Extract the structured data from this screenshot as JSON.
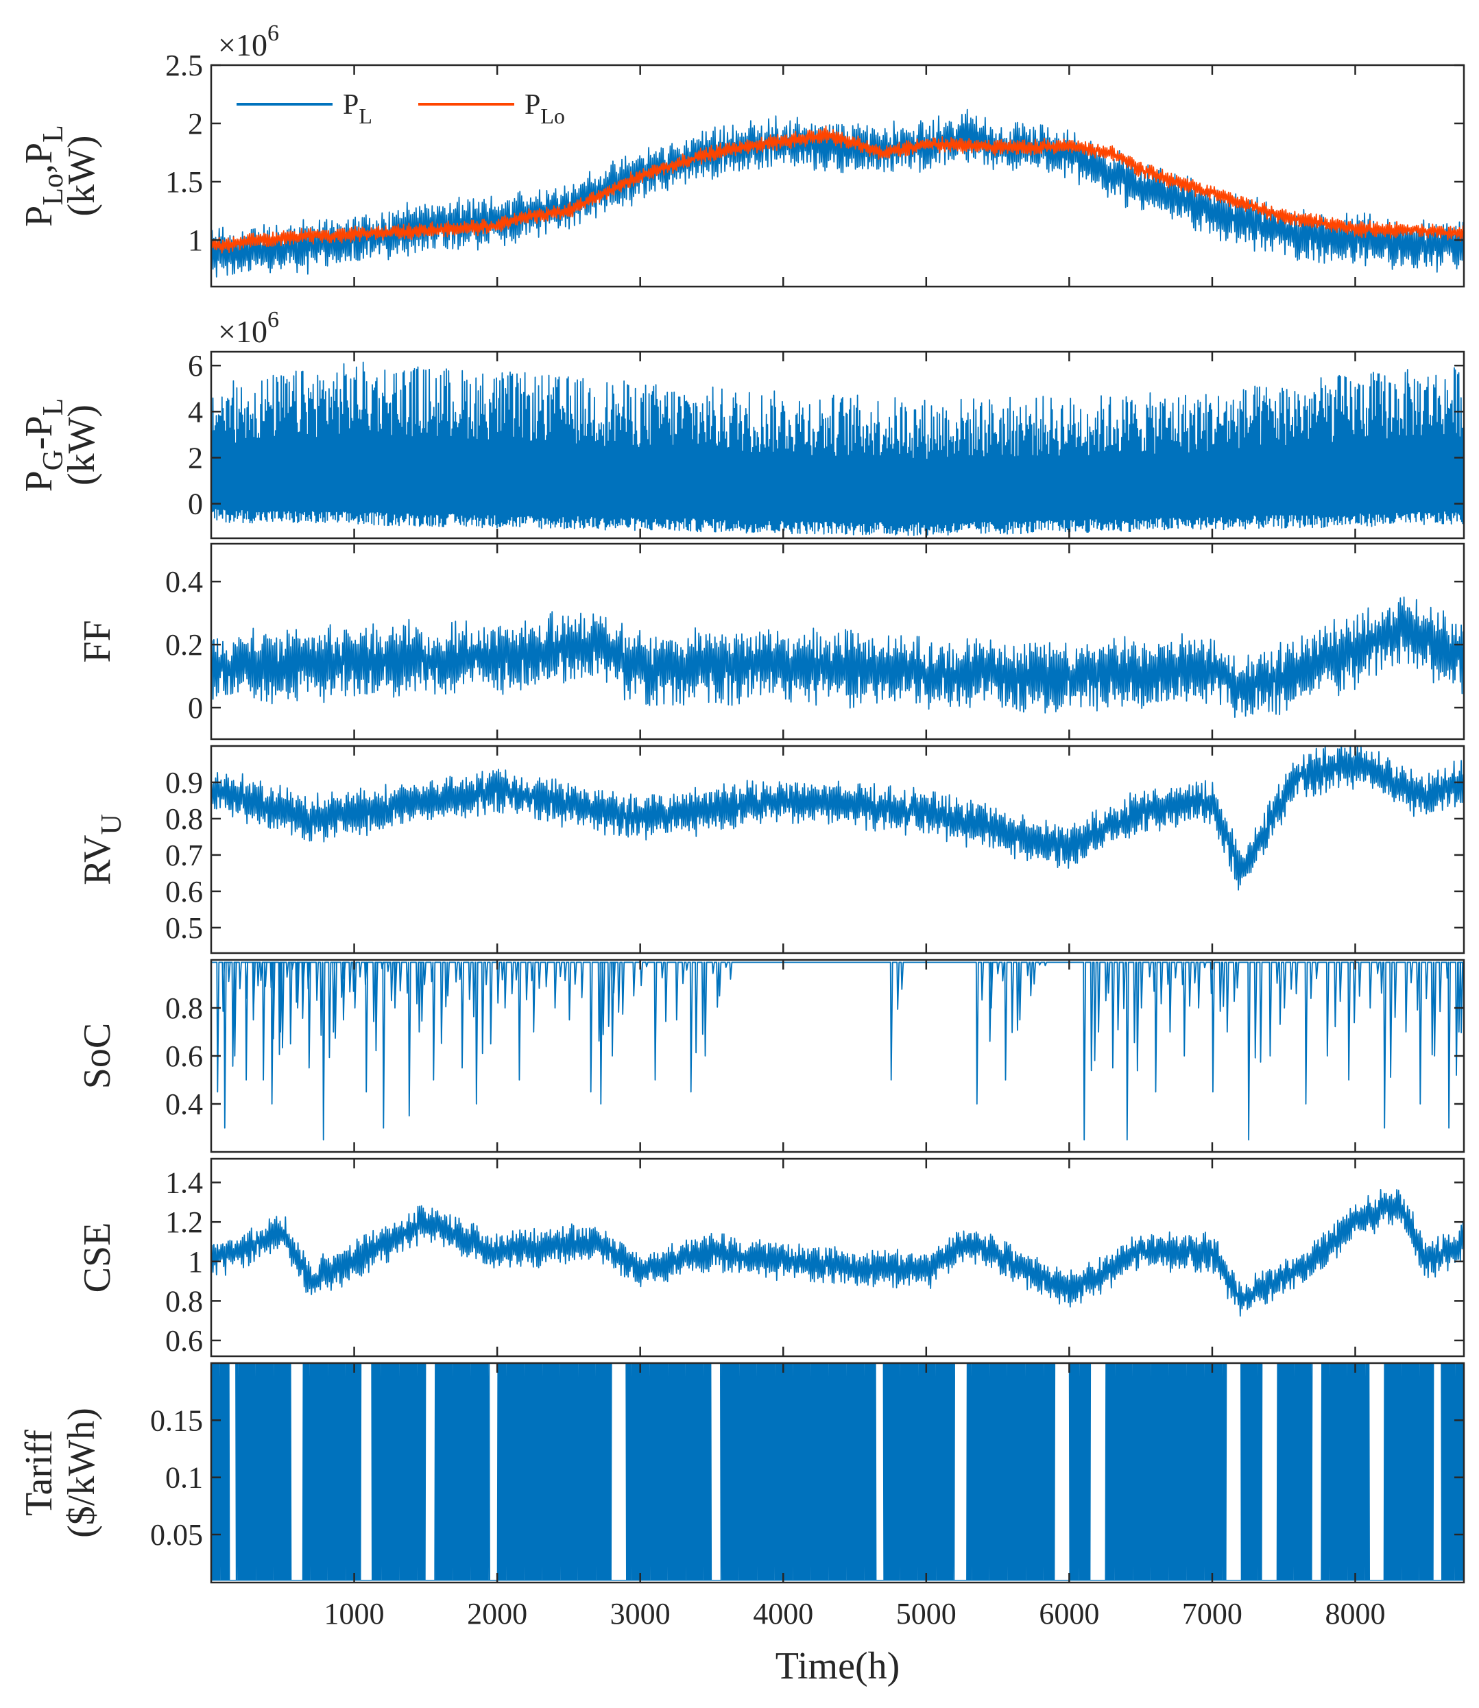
{
  "chart_data": [
    {
      "id": "p1",
      "type": "line",
      "ylabel_parts": [
        {
          "t": "P"
        },
        {
          "t": "Lo",
          "sub": true
        },
        {
          "t": ",P"
        },
        {
          "t": "L",
          "sub": true
        }
      ],
      "yunit": "(kW)",
      "exponent": "×10",
      "exponent_power": "6",
      "ylim": [
        0.6,
        2.5
      ],
      "yticks": [
        "1",
        "1.5",
        "2",
        "2.5"
      ],
      "ytick_values": [
        1,
        1.5,
        2,
        2.5
      ],
      "series": [
        {
          "name": "P_L",
          "label": "P",
          "label_sub": "L",
          "color": "#0072BD",
          "trend": [
            [
              0,
              0.88
            ],
            [
              500,
              0.92
            ],
            [
              1000,
              1.0
            ],
            [
              1500,
              1.12
            ],
            [
              2000,
              1.15
            ],
            [
              2500,
              1.3
            ],
            [
              3000,
              1.55
            ],
            [
              3500,
              1.75
            ],
            [
              4000,
              1.85
            ],
            [
              4500,
              1.78
            ],
            [
              5000,
              1.8
            ],
            [
              5300,
              1.9
            ],
            [
              5500,
              1.8
            ],
            [
              6000,
              1.75
            ],
            [
              6500,
              1.45
            ],
            [
              7000,
              1.25
            ],
            [
              7500,
              1.05
            ],
            [
              8000,
              1.0
            ],
            [
              8500,
              0.95
            ],
            [
              8760,
              0.95
            ]
          ],
          "spread": 0.38
        },
        {
          "name": "P_Lo",
          "label": "P",
          "label_sub": "Lo",
          "color": "#FF4500",
          "trend": [
            [
              0,
              0.95
            ],
            [
              500,
              1.02
            ],
            [
              1000,
              1.05
            ],
            [
              1500,
              1.08
            ],
            [
              2000,
              1.12
            ],
            [
              2200,
              1.2
            ],
            [
              2500,
              1.25
            ],
            [
              3000,
              1.55
            ],
            [
              3500,
              1.75
            ],
            [
              4000,
              1.85
            ],
            [
              4300,
              1.9
            ],
            [
              4700,
              1.75
            ],
            [
              5000,
              1.82
            ],
            [
              5500,
              1.8
            ],
            [
              6000,
              1.8
            ],
            [
              6300,
              1.75
            ],
            [
              6500,
              1.6
            ],
            [
              7000,
              1.4
            ],
            [
              7500,
              1.2
            ],
            [
              8000,
              1.1
            ],
            [
              8500,
              1.08
            ],
            [
              8760,
              1.05
            ]
          ],
          "spread": 0.12
        }
      ]
    },
    {
      "id": "p2",
      "type": "line",
      "ylabel_parts": [
        {
          "t": "P"
        },
        {
          "t": "G",
          "sub": true
        },
        {
          "t": "-P"
        },
        {
          "t": "L",
          "sub": true
        }
      ],
      "yunit": "(kW)",
      "exponent": "×10",
      "exponent_power": "6",
      "ylim": [
        -1.5,
        6.6
      ],
      "yticks": [
        "0",
        "2",
        "4",
        "6"
      ],
      "ytick_values": [
        0,
        2,
        4,
        6
      ],
      "series": [
        {
          "name": "P_G-P_L",
          "color": "#0072BD",
          "trend": [
            [
              0,
              2.2
            ],
            [
              1000,
              2.5
            ],
            [
              2000,
              2.3
            ],
            [
              3000,
              2.0
            ],
            [
              4000,
              1.9
            ],
            [
              5000,
              1.8
            ],
            [
              6000,
              1.9
            ],
            [
              7000,
              2.0
            ],
            [
              8000,
              2.3
            ],
            [
              8760,
              2.2
            ]
          ],
          "low": [
            [
              0,
              -0.8
            ],
            [
              4000,
              -1.3
            ],
            [
              5000,
              -1.4
            ],
            [
              8760,
              -0.9
            ]
          ],
          "high": [
            [
              0,
              5.2
            ],
            [
              1000,
              6.2
            ],
            [
              2000,
              5.8
            ],
            [
              3000,
              5.3
            ],
            [
              4000,
              4.9
            ],
            [
              5000,
              4.6
            ],
            [
              6000,
              4.7
            ],
            [
              7000,
              4.9
            ],
            [
              8000,
              5.7
            ],
            [
              8760,
              6.0
            ]
          ]
        }
      ]
    },
    {
      "id": "p3",
      "type": "line",
      "ylabel_parts": [
        {
          "t": "FF"
        }
      ],
      "ylim": [
        -0.1,
        0.52
      ],
      "yticks": [
        "0",
        "0.2",
        "0.4"
      ],
      "ytick_values": [
        0,
        0.2,
        0.4
      ],
      "series": [
        {
          "name": "FF",
          "color": "#0072BD",
          "trend": [
            [
              0,
              0.12
            ],
            [
              1000,
              0.15
            ],
            [
              2000,
              0.16
            ],
            [
              2700,
              0.2
            ],
            [
              3000,
              0.12
            ],
            [
              4000,
              0.14
            ],
            [
              5000,
              0.11
            ],
            [
              6000,
              0.1
            ],
            [
              7000,
              0.12
            ],
            [
              7200,
              0.06
            ],
            [
              8000,
              0.18
            ],
            [
              8300,
              0.25
            ],
            [
              8760,
              0.16
            ]
          ],
          "spread": 0.2
        }
      ]
    },
    {
      "id": "p4",
      "type": "line",
      "ylabel_parts": [
        {
          "t": "RV"
        },
        {
          "t": "U",
          "sub": true
        }
      ],
      "ylim": [
        0.43,
        1.0
      ],
      "yticks": [
        "0.5",
        "0.6",
        "0.7",
        "0.8",
        "0.9"
      ],
      "ytick_values": [
        0.5,
        0.6,
        0.7,
        0.8,
        0.9
      ],
      "series": [
        {
          "name": "RV_U",
          "color": "#0072BD",
          "trend": [
            [
              0,
              0.88
            ],
            [
              700,
              0.8
            ],
            [
              1100,
              0.82
            ],
            [
              2000,
              0.88
            ],
            [
              3000,
              0.8
            ],
            [
              4000,
              0.85
            ],
            [
              5000,
              0.82
            ],
            [
              6000,
              0.72
            ],
            [
              6500,
              0.82
            ],
            [
              7000,
              0.85
            ],
            [
              7200,
              0.65
            ],
            [
              7600,
              0.92
            ],
            [
              8000,
              0.95
            ],
            [
              8500,
              0.86
            ],
            [
              8760,
              0.9
            ]
          ],
          "spread": 0.11
        }
      ]
    },
    {
      "id": "p5",
      "type": "line",
      "ylabel_parts": [
        {
          "t": "SoC"
        }
      ],
      "ylim": [
        0.2,
        1.0
      ],
      "yticks": [
        "0.4",
        "0.6",
        "0.8"
      ],
      "ytick_values": [
        0.4,
        0.6,
        0.8
      ],
      "series": [
        {
          "name": "SoC",
          "color": "#0072BD",
          "baseline": 0.99,
          "dips": [
            [
              40,
              0.45
            ],
            [
              90,
              0.3
            ],
            [
              160,
              0.6
            ],
            [
              240,
              0.5
            ],
            [
              290,
              0.75
            ],
            [
              360,
              0.5
            ],
            [
              420,
              0.4
            ],
            [
              480,
              0.7
            ],
            [
              550,
              0.65
            ],
            [
              600,
              0.8
            ],
            [
              680,
              0.55
            ],
            [
              780,
              0.25
            ],
            [
              850,
              0.7
            ],
            [
              920,
              0.75
            ],
            [
              1000,
              0.8
            ],
            [
              1080,
              0.45
            ],
            [
              1150,
              0.8
            ],
            [
              1200,
              0.3
            ],
            [
              1280,
              0.8
            ],
            [
              1380,
              0.35
            ],
            [
              1450,
              0.7
            ],
            [
              1550,
              0.5
            ],
            [
              1650,
              0.85
            ],
            [
              1750,
              0.55
            ],
            [
              1850,
              0.4
            ],
            [
              1950,
              0.65
            ],
            [
              2050,
              0.8
            ],
            [
              2150,
              0.5
            ],
            [
              2250,
              0.7
            ],
            [
              2400,
              0.8
            ],
            [
              2500,
              0.75
            ],
            [
              2650,
              0.45
            ],
            [
              2720,
              0.4
            ],
            [
              2800,
              0.6
            ],
            [
              2950,
              0.85
            ],
            [
              3100,
              0.5
            ],
            [
              3250,
              0.75
            ],
            [
              3350,
              0.45
            ],
            [
              3450,
              0.6
            ],
            [
              3550,
              0.85
            ],
            [
              4750,
              0.5
            ],
            [
              5350,
              0.4
            ],
            [
              5450,
              0.8
            ],
            [
              5550,
              0.5
            ],
            [
              5650,
              0.75
            ],
            [
              5750,
              0.9
            ],
            [
              6100,
              0.25
            ],
            [
              6200,
              0.7
            ],
            [
              6300,
              0.55
            ],
            [
              6400,
              0.25
            ],
            [
              6500,
              0.8
            ],
            [
              6600,
              0.45
            ],
            [
              6700,
              0.7
            ],
            [
              6800,
              0.6
            ],
            [
              6900,
              0.8
            ],
            [
              7000,
              0.45
            ],
            [
              7100,
              0.7
            ],
            [
              7250,
              0.25
            ],
            [
              7400,
              0.6
            ],
            [
              7500,
              0.8
            ],
            [
              7650,
              0.4
            ],
            [
              7800,
              0.6
            ],
            [
              7950,
              0.5
            ],
            [
              8100,
              0.8
            ],
            [
              8200,
              0.3
            ],
            [
              8350,
              0.7
            ],
            [
              8450,
              0.4
            ],
            [
              8550,
              0.6
            ],
            [
              8650,
              0.3
            ],
            [
              8720,
              0.7
            ]
          ]
        }
      ]
    },
    {
      "id": "p6",
      "type": "line",
      "ylabel_parts": [
        {
          "t": "CSE"
        }
      ],
      "ylim": [
        0.52,
        1.52
      ],
      "yticks": [
        "0.6",
        "0.8",
        "1",
        "1.2",
        "1.4"
      ],
      "ytick_values": [
        0.6,
        0.8,
        1.0,
        1.2,
        1.4
      ],
      "series": [
        {
          "name": "CSE",
          "color": "#0072BD",
          "trend": [
            [
              0,
              1.0
            ],
            [
              500,
              1.15
            ],
            [
              700,
              0.9
            ],
            [
              1100,
              1.05
            ],
            [
              1500,
              1.2
            ],
            [
              2000,
              1.05
            ],
            [
              2700,
              1.1
            ],
            [
              3000,
              0.95
            ],
            [
              3500,
              1.05
            ],
            [
              4000,
              1.0
            ],
            [
              5000,
              0.95
            ],
            [
              5300,
              1.1
            ],
            [
              6000,
              0.85
            ],
            [
              6500,
              1.05
            ],
            [
              7000,
              1.05
            ],
            [
              7200,
              0.8
            ],
            [
              7700,
              1.0
            ],
            [
              8000,
              1.2
            ],
            [
              8300,
              1.3
            ],
            [
              8500,
              1.0
            ],
            [
              8760,
              1.1
            ]
          ],
          "spread": 0.17
        }
      ]
    },
    {
      "id": "p7",
      "type": "line",
      "ylabel_parts": [
        {
          "t": "Tariff"
        }
      ],
      "yunit": "($/kWh)",
      "ylim": [
        0.008,
        0.2
      ],
      "yticks": [
        "0.05",
        "0.1",
        "0.15"
      ],
      "ytick_values": [
        0.05,
        0.1,
        0.15
      ],
      "series": [
        {
          "name": "Tariff",
          "color": "#0072BD",
          "min": 0.01,
          "max": 0.2,
          "gaps": [
            [
              130,
              170
            ],
            [
              560,
              640
            ],
            [
              1050,
              1120
            ],
            [
              1500,
              1560
            ],
            [
              1950,
              2000
            ],
            [
              2800,
              2900
            ],
            [
              3500,
              3560
            ],
            [
              4650,
              4700
            ],
            [
              5200,
              5280
            ],
            [
              5900,
              6000
            ],
            [
              6150,
              6250
            ],
            [
              7100,
              7200
            ],
            [
              7350,
              7450
            ],
            [
              7700,
              7760
            ],
            [
              8100,
              8200
            ],
            [
              8550,
              8600
            ]
          ]
        }
      ]
    }
  ],
  "xaxis": {
    "label": "Time(h)",
    "xlim": [
      0,
      8760
    ],
    "ticks": [
      "1000",
      "2000",
      "3000",
      "4000",
      "5000",
      "6000",
      "7000",
      "8000"
    ],
    "tick_values": [
      1000,
      2000,
      3000,
      4000,
      5000,
      6000,
      7000,
      8000
    ]
  },
  "colors": {
    "blue": "#0072BD",
    "orange": "#FF4500",
    "axis": "#262626"
  }
}
